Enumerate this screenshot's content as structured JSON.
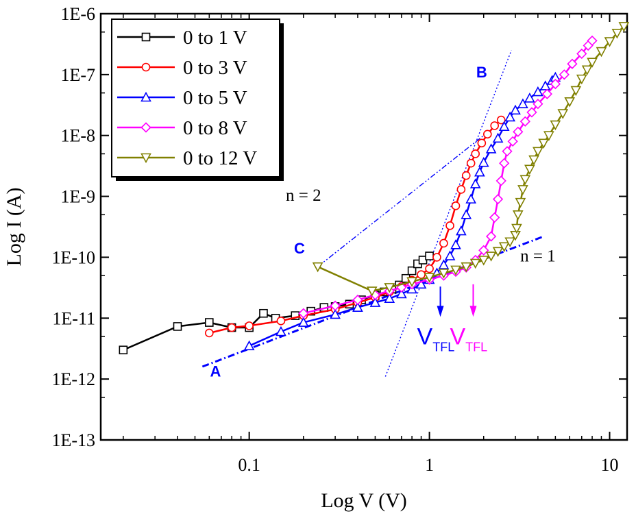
{
  "chart_data": {
    "type": "line",
    "xscale": "log",
    "yscale": "log",
    "xlabel": "Log V (V)",
    "ylabel": "Log I (A)",
    "xlim": [
      0.015,
      12.5
    ],
    "ylim": [
      1e-13,
      1e-06
    ],
    "x_ticks": [
      {
        "value": 0.1,
        "label": "0.1"
      },
      {
        "value": 1,
        "label": "1"
      },
      {
        "value": 10,
        "label": "10"
      }
    ],
    "y_ticks": [
      {
        "value": 1e-13,
        "label": "1E-13"
      },
      {
        "value": 1e-12,
        "label": "1E-12"
      },
      {
        "value": 1e-11,
        "label": "1E-11"
      },
      {
        "value": 1e-10,
        "label": "1E-10"
      },
      {
        "value": 1e-09,
        "label": "1E-9"
      },
      {
        "value": 1e-08,
        "label": "1E-8"
      },
      {
        "value": 1e-07,
        "label": "1E-7"
      },
      {
        "value": 1e-06,
        "label": "1E-6"
      }
    ],
    "legend_position": "top-left",
    "series": [
      {
        "name": "0 to 1 V",
        "color": "#000000",
        "marker": "square",
        "points": [
          [
            0.02,
            3e-12
          ],
          [
            0.04,
            7.3e-12
          ],
          [
            0.06,
            8.5e-12
          ],
          [
            0.08,
            7e-12
          ],
          [
            0.1,
            7e-12
          ],
          [
            0.12,
            1.2e-11
          ],
          [
            0.14,
            1e-11
          ],
          [
            0.18,
            1.1e-11
          ],
          [
            0.22,
            1.3e-11
          ],
          [
            0.26,
            1.5e-11
          ],
          [
            0.3,
            1.55e-11
          ],
          [
            0.36,
            1.7e-11
          ],
          [
            0.42,
            2e-11
          ],
          [
            0.5,
            2.4e-11
          ],
          [
            0.56,
            2.7e-11
          ],
          [
            0.62,
            3e-11
          ],
          [
            0.68,
            3.5e-11
          ],
          [
            0.74,
            4.5e-11
          ],
          [
            0.8,
            6e-11
          ],
          [
            0.86,
            7.8e-11
          ],
          [
            0.92,
            9e-11
          ],
          [
            1.0,
            1.05e-10
          ]
        ]
      },
      {
        "name": "0 to 3 V",
        "color": "#ff0000",
        "marker": "circle",
        "points": [
          [
            0.06,
            5.7e-12
          ],
          [
            0.08,
            7e-12
          ],
          [
            0.1,
            7.5e-12
          ],
          [
            0.15,
            9e-12
          ],
          [
            0.2,
            1.1e-11
          ],
          [
            0.3,
            1.4e-11
          ],
          [
            0.4,
            1.8e-11
          ],
          [
            0.5,
            2.2e-11
          ],
          [
            0.6,
            2.7e-11
          ],
          [
            0.7,
            3.3e-11
          ],
          [
            0.8,
            4.2e-11
          ],
          [
            0.9,
            5.2e-11
          ],
          [
            1.0,
            6.5e-11
          ],
          [
            1.1,
            1e-10
          ],
          [
            1.2,
            1.7e-10
          ],
          [
            1.3,
            3.3e-10
          ],
          [
            1.4,
            7e-10
          ],
          [
            1.5,
            1.3e-09
          ],
          [
            1.6,
            2.2e-09
          ],
          [
            1.7,
            3.5e-09
          ],
          [
            1.8,
            5e-09
          ],
          [
            1.95,
            7.5e-09
          ],
          [
            2.1,
            1.05e-08
          ],
          [
            2.3,
            1.45e-08
          ],
          [
            2.5,
            1.8e-08
          ]
        ]
      },
      {
        "name": "0 to 5 V",
        "color": "#0000ff",
        "marker": "triangle-up",
        "points": [
          [
            0.1,
            3.5e-12
          ],
          [
            0.15,
            6e-12
          ],
          [
            0.2,
            8.5e-12
          ],
          [
            0.3,
            1.15e-11
          ],
          [
            0.4,
            1.5e-11
          ],
          [
            0.5,
            1.8e-11
          ],
          [
            0.6,
            2.1e-11
          ],
          [
            0.7,
            2.5e-11
          ],
          [
            0.8,
            3e-11
          ],
          [
            0.9,
            3.6e-11
          ],
          [
            1.0,
            4.3e-11
          ],
          [
            1.1,
            5.5e-11
          ],
          [
            1.2,
            7.5e-11
          ],
          [
            1.3,
            1.05e-10
          ],
          [
            1.4,
            1.6e-10
          ],
          [
            1.5,
            2.7e-10
          ],
          [
            1.6,
            5e-10
          ],
          [
            1.7,
            9e-10
          ],
          [
            1.8,
            1.6e-09
          ],
          [
            1.9,
            2.5e-09
          ],
          [
            2.0,
            3.6e-09
          ],
          [
            2.2,
            6e-09
          ],
          [
            2.4,
            9e-09
          ],
          [
            2.6,
            1.4e-08
          ],
          [
            2.8,
            2e-08
          ],
          [
            3.0,
            2.6e-08
          ],
          [
            3.3,
            3.3e-08
          ],
          [
            3.6,
            4.1e-08
          ],
          [
            4.0,
            5.2e-08
          ],
          [
            4.4,
            6.5e-08
          ],
          [
            4.8,
            8e-08
          ],
          [
            5.0,
            9e-08
          ]
        ]
      },
      {
        "name": "0 to 8 V",
        "color": "#ff00ff",
        "marker": "diamond",
        "points": [
          [
            0.2,
            1.2e-11
          ],
          [
            0.3,
            1.6e-11
          ],
          [
            0.4,
            2e-11
          ],
          [
            0.5,
            2.4e-11
          ],
          [
            0.6,
            2.8e-11
          ],
          [
            0.7,
            3.2e-11
          ],
          [
            0.8,
            3.6e-11
          ],
          [
            1.0,
            4.3e-11
          ],
          [
            1.2,
            5e-11
          ],
          [
            1.4,
            5.8e-11
          ],
          [
            1.6,
            6.8e-11
          ],
          [
            1.8,
            9e-11
          ],
          [
            2.0,
            1.3e-10
          ],
          [
            2.2,
            2.2e-10
          ],
          [
            2.3,
            4.5e-10
          ],
          [
            2.4,
            9e-10
          ],
          [
            2.5,
            1.8e-09
          ],
          [
            2.6,
            3.5e-09
          ],
          [
            2.7,
            5.5e-09
          ],
          [
            2.9,
            8e-09
          ],
          [
            3.1,
            1.15e-08
          ],
          [
            3.4,
            1.7e-08
          ],
          [
            3.7,
            2.4e-08
          ],
          [
            4.0,
            3.3e-08
          ],
          [
            4.5,
            4.8e-08
          ],
          [
            5.0,
            7e-08
          ],
          [
            5.6,
            1e-07
          ],
          [
            6.2,
            1.5e-07
          ],
          [
            7.0,
            2.2e-07
          ],
          [
            7.6,
            3e-07
          ],
          [
            8.0,
            3.6e-07
          ]
        ]
      },
      {
        "name": "0 to 12 V",
        "color": "#808000",
        "marker": "triangle-down",
        "points": [
          [
            0.24,
            7e-11
          ],
          [
            0.48,
            2.8e-11
          ],
          [
            0.6,
            3.2e-11
          ],
          [
            0.8,
            4e-11
          ],
          [
            1.0,
            4.7e-11
          ],
          [
            1.2,
            5.5e-11
          ],
          [
            1.4,
            6.2e-11
          ],
          [
            1.6,
            7e-11
          ],
          [
            1.8,
            8e-11
          ],
          [
            2.0,
            9e-11
          ],
          [
            2.2,
            1.05e-10
          ],
          [
            2.4,
            1.25e-10
          ],
          [
            2.6,
            1.5e-10
          ],
          [
            2.8,
            1.8e-10
          ],
          [
            3.0,
            2.3e-10
          ],
          [
            3.05,
            3e-10
          ],
          [
            3.1,
            5e-10
          ],
          [
            3.2,
            8e-10
          ],
          [
            3.3,
            1.3e-09
          ],
          [
            3.4,
            1.9e-09
          ],
          [
            3.6,
            2.8e-09
          ],
          [
            3.8,
            4e-09
          ],
          [
            4.0,
            5.5e-09
          ],
          [
            4.3,
            7.5e-09
          ],
          [
            4.6,
            1e-08
          ],
          [
            5.0,
            1.5e-08
          ],
          [
            5.5,
            2.3e-08
          ],
          [
            6.0,
            3.6e-08
          ],
          [
            6.5,
            5.5e-08
          ],
          [
            7.0,
            8.5e-08
          ],
          [
            7.5,
            1.2e-07
          ],
          [
            8.0,
            1.6e-07
          ],
          [
            9.0,
            2.4e-07
          ],
          [
            10.0,
            3.5e-07
          ],
          [
            11.0,
            4.8e-07
          ],
          [
            12.0,
            6.2e-07
          ]
        ]
      }
    ],
    "fit_lines": [
      {
        "name": "slope-1-fit",
        "color": "#0000ff",
        "style": "dashdot",
        "points": [
          [
            0.055,
            1.6e-12
          ],
          [
            4.3,
            2.2e-10
          ]
        ]
      },
      {
        "name": "slope-2-fit",
        "color": "#0000ff",
        "style": "dashdotdot",
        "points": [
          [
            0.24,
            7e-11
          ],
          [
            2.0,
            1e-08
          ]
        ]
      },
      {
        "name": "steep-fit",
        "color": "#0000ff",
        "style": "dotted",
        "points": [
          [
            0.57,
            1.1e-12
          ],
          [
            2.85,
            2.5e-07
          ]
        ]
      }
    ],
    "annotations": [
      {
        "name": "label-a",
        "text": "A",
        "x": 0.065,
        "y": 1.1e-12,
        "color": "#0000ff"
      },
      {
        "name": "label-b",
        "text": "B",
        "x": 1.95,
        "y": 9e-08,
        "color": "#0000ff"
      },
      {
        "name": "label-c",
        "text": "C",
        "x": 0.19,
        "y": 1.15e-10,
        "color": "#0000ff"
      },
      {
        "name": "label-n2",
        "text": "n = 2",
        "x": 0.2,
        "y": 8.5e-10,
        "color": "#000000"
      },
      {
        "name": "label-n1",
        "text": "n = 1",
        "x": 4.0,
        "y": 8.5e-11,
        "color": "#000000"
      }
    ],
    "vtfl_markers": [
      {
        "name": "vtfl-blue",
        "text": "V",
        "subscript": "TFL",
        "x": 1.15,
        "arrow_from": 3.3e-11,
        "arrow_to": 1.05e-11,
        "color": "#0000ff"
      },
      {
        "name": "vtfl-magenta",
        "text": "V",
        "subscript": "TFL",
        "x": 1.75,
        "arrow_from": 3.6e-11,
        "arrow_to": 1.05e-11,
        "color": "#ff00ff"
      }
    ]
  }
}
